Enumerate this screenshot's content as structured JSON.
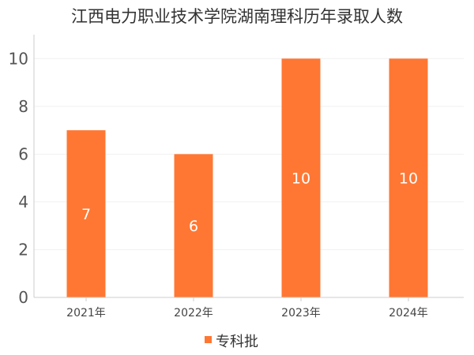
{
  "chart_data": {
    "type": "bar",
    "title": "江西电力职业技术学院湖南理科历年录取人数",
    "categories": [
      "2021年",
      "2022年",
      "2023年",
      "2024年"
    ],
    "series": [
      {
        "name": "专科批",
        "values": [
          7,
          6,
          10,
          10
        ]
      }
    ],
    "ylim": [
      0,
      11
    ],
    "yticks": [
      0,
      2,
      4,
      6,
      8,
      10
    ],
    "grid": true,
    "legend_position": "bottom-center",
    "bar_color": "#FF7733",
    "data_labels": true,
    "xlabel": "",
    "ylabel": ""
  }
}
